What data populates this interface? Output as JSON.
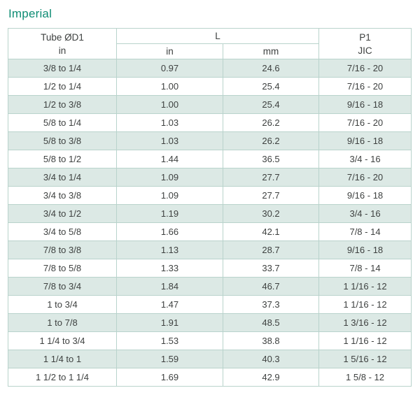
{
  "title": "Imperial",
  "colors": {
    "title_text": "#0e8c74",
    "row_shaded": "#dce9e5",
    "table_border": "#b9d3cc",
    "body_text": "#3e4140"
  },
  "table": {
    "header": {
      "col1_line1": "Tube ØD1",
      "col1_line2": "in",
      "l_label": "L",
      "sub_in": "in",
      "sub_mm": "mm",
      "col4_line1": "P1",
      "col4_line2": "JIC"
    },
    "columns": [
      "tube-od1",
      "l-in",
      "l-mm",
      "p1-jic"
    ],
    "rows": [
      [
        "3/8 to 1/4",
        "0.97",
        "24.6",
        "7/16 - 20"
      ],
      [
        "1/2 to 1/4",
        "1.00",
        "25.4",
        "7/16 - 20"
      ],
      [
        "1/2 to 3/8",
        "1.00",
        "25.4",
        "9/16 - 18"
      ],
      [
        "5/8 to 1/4",
        "1.03",
        "26.2",
        "7/16 - 20"
      ],
      [
        "5/8 to 3/8",
        "1.03",
        "26.2",
        "9/16 - 18"
      ],
      [
        "5/8 to 1/2",
        "1.44",
        "36.5",
        "3/4 - 16"
      ],
      [
        "3/4 to 1/4",
        "1.09",
        "27.7",
        "7/16 - 20"
      ],
      [
        "3/4 to 3/8",
        "1.09",
        "27.7",
        "9/16 - 18"
      ],
      [
        "3/4 to 1/2",
        "1.19",
        "30.2",
        "3/4 - 16"
      ],
      [
        "3/4 to 5/8",
        "1.66",
        "42.1",
        "7/8 - 14"
      ],
      [
        "7/8 to 3/8",
        "1.13",
        "28.7",
        "9/16 - 18"
      ],
      [
        "7/8 to 5/8",
        "1.33",
        "33.7",
        "7/8 - 14"
      ],
      [
        "7/8 to 3/4",
        "1.84",
        "46.7",
        "1 1/16 - 12"
      ],
      [
        "1 to 3/4",
        "1.47",
        "37.3",
        "1 1/16 - 12"
      ],
      [
        "1 to 7/8",
        "1.91",
        "48.5",
        "1 3/16 - 12"
      ],
      [
        "1 1/4 to 3/4",
        "1.53",
        "38.8",
        "1 1/16 - 12"
      ],
      [
        "1 1/4 to 1",
        "1.59",
        "40.3",
        "1 5/16 - 12"
      ],
      [
        "1 1/2 to 1 1/4",
        "1.69",
        "42.9",
        "1 5/8 - 12"
      ]
    ]
  }
}
